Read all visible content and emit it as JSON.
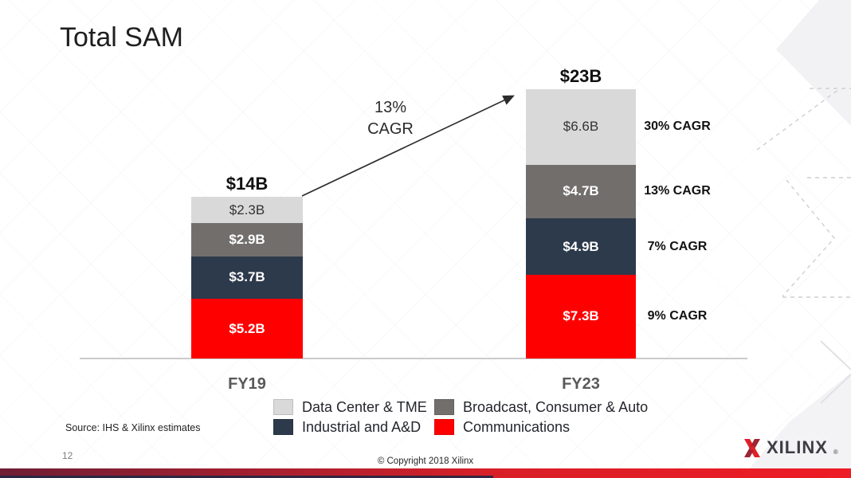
{
  "slide": {
    "title": "Total SAM",
    "source_note": "Source: IHS & Xilinx estimates",
    "page_number": "12",
    "copyright": "© Copyright 2018 Xilinx",
    "logo_text": "XILINX",
    "logo_reg_mark": "®",
    "accent_red": "#e01f27"
  },
  "chart_data": {
    "type": "bar",
    "subtype": "stacked",
    "title": "Total SAM",
    "unit": "$B",
    "categories": [
      "FY19",
      "FY23"
    ],
    "totals": [
      14,
      23
    ],
    "total_labels": [
      "$14B",
      "$23B"
    ],
    "series": [
      {
        "name": "Data Center & TME",
        "color": "#d9d9d9",
        "label_color": "#333333",
        "label_bold": false,
        "values": [
          2.3,
          6.6
        ],
        "value_labels": [
          "$2.3B",
          "$6.6B"
        ],
        "cagr": "30% CAGR"
      },
      {
        "name": "Broadcast, Consumer & Auto",
        "color": "#716e6c",
        "label_color": "#ffffff",
        "label_bold": true,
        "values": [
          2.9,
          4.7
        ],
        "value_labels": [
          "$2.9B",
          "$4.7B"
        ],
        "cagr": "13% CAGR"
      },
      {
        "name": "Industrial and A&D",
        "color": "#2d3a4b",
        "label_color": "#ffffff",
        "label_bold": true,
        "values": [
          3.7,
          4.9
        ],
        "value_labels": [
          "$3.7B",
          "$4.9B"
        ],
        "cagr": "7% CAGR"
      },
      {
        "name": "Communications",
        "color": "#ff0000",
        "label_color": "#ffffff",
        "label_bold": true,
        "values": [
          5.2,
          7.3
        ],
        "value_labels": [
          "$5.2B",
          "$7.3B"
        ],
        "cagr": "9% CAGR"
      }
    ],
    "stack_order_top_to_bottom": [
      "Data Center & TME",
      "Broadcast, Consumer & Auto",
      "Industrial and A&D",
      "Communications"
    ],
    "overall_growth": {
      "label_line1": "13%",
      "label_line2": "CAGR",
      "from": "FY19",
      "to": "FY23"
    },
    "legend_position": "bottom",
    "axes": {
      "y_axis_shown": false,
      "baseline_shown": true
    }
  }
}
